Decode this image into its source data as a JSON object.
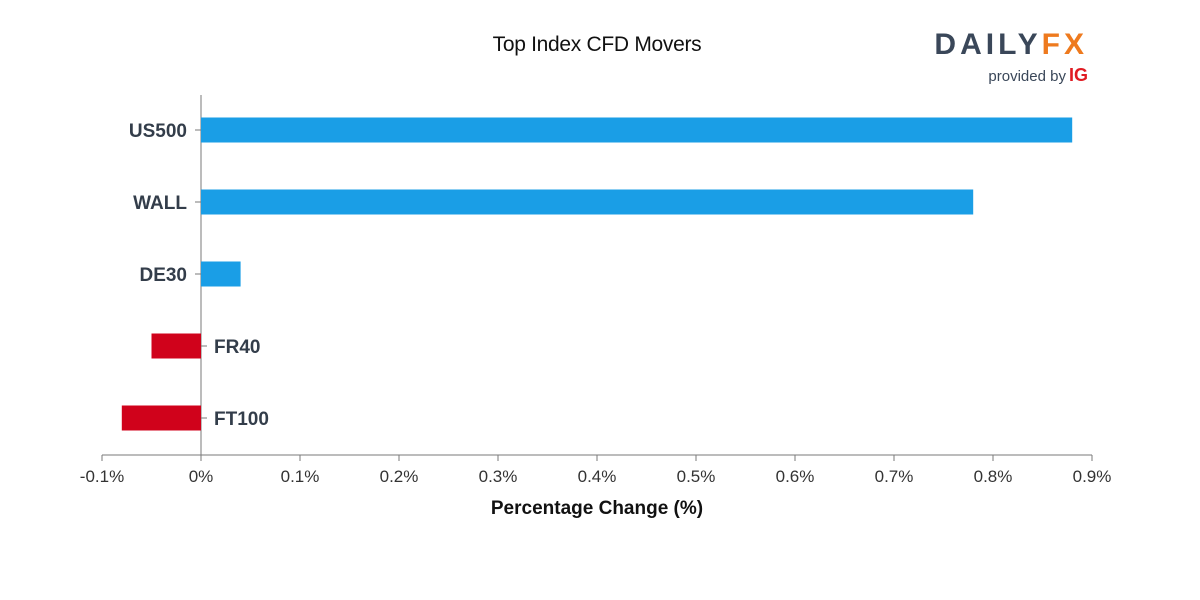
{
  "chart_data": {
    "type": "bar",
    "orientation": "horizontal",
    "title": "Top Index CFD Movers",
    "xlabel": "Percentage Change (%)",
    "ylabel": "",
    "xlim": [
      -0.1,
      0.9
    ],
    "x_ticks": [
      -0.1,
      0,
      0.1,
      0.2,
      0.3,
      0.4,
      0.5,
      0.6,
      0.7,
      0.8,
      0.9
    ],
    "x_tick_labels": [
      "-0.1%",
      "0%",
      "0.1%",
      "0.2%",
      "0.3%",
      "0.4%",
      "0.5%",
      "0.6%",
      "0.7%",
      "0.8%",
      "0.9%"
    ],
    "categories": [
      "US500",
      "WALL",
      "DE30",
      "FR40",
      "FT100"
    ],
    "values": [
      0.88,
      0.78,
      0.04,
      -0.05,
      -0.08
    ],
    "grid": false,
    "colors": {
      "positive": "#1a9ee6",
      "negative": "#d0021b",
      "axis": "#7a7a7a",
      "label": "#333d4a"
    }
  },
  "logo": {
    "word_daily": "DAILY",
    "word_fx": "FX",
    "provided_by": "provided by",
    "brand": "IG"
  }
}
